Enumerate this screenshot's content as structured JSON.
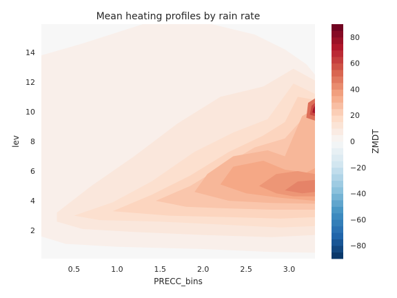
{
  "chart_data": {
    "type": "heatmap",
    "subtype": "filled-contour",
    "title": "Mean heating profiles by rain rate",
    "xlabel": "PRECC_bins",
    "ylabel": "lev",
    "colorbar_label": "ZMDT",
    "colormap": "RdBu_r",
    "xlim": [
      0.12,
      3.3
    ],
    "ylim": [
      0.1,
      15.9
    ],
    "color_range": [
      -90,
      90
    ],
    "x_ticks": [
      "0.5",
      "1.0",
      "1.5",
      "2.0",
      "2.5",
      "3.0"
    ],
    "y_ticks": [
      "2",
      "4",
      "6",
      "8",
      "10",
      "12",
      "14"
    ],
    "colorbar_ticks": [
      "80",
      "60",
      "40",
      "20",
      "0",
      "−20",
      "−40",
      "−60",
      "−80"
    ],
    "grid": false,
    "levels": [
      {
        "value": 0,
        "polygon": [
          [
            0.12,
            15.9
          ],
          [
            3.3,
            15.9
          ],
          [
            3.3,
            0.1
          ],
          [
            0.12,
            0.1
          ]
        ]
      },
      {
        "value": 5,
        "polygon": [
          [
            0.12,
            13.8
          ],
          [
            0.6,
            14.6
          ],
          [
            1.3,
            15.9
          ],
          [
            2.1,
            15.9
          ],
          [
            2.6,
            15.2
          ],
          [
            2.95,
            14.2
          ],
          [
            3.2,
            13.2
          ],
          [
            3.3,
            12.5
          ],
          [
            3.3,
            0.5
          ],
          [
            2.8,
            0.55
          ],
          [
            2.0,
            0.75
          ],
          [
            1.0,
            0.9
          ],
          [
            0.4,
            1.1
          ],
          [
            0.12,
            1.6
          ]
        ]
      },
      {
        "value": 10,
        "polygon": [
          [
            0.3,
            3.2
          ],
          [
            0.7,
            5.0
          ],
          [
            1.2,
            7.0
          ],
          [
            1.7,
            9.2
          ],
          [
            2.2,
            11.0
          ],
          [
            2.7,
            11.7
          ],
          [
            3.05,
            12.9
          ],
          [
            3.3,
            12.1
          ],
          [
            3.3,
            1.7
          ],
          [
            2.8,
            1.55
          ],
          [
            2.0,
            1.7
          ],
          [
            1.2,
            1.9
          ],
          [
            0.6,
            2.1
          ],
          [
            0.3,
            2.6
          ]
        ]
      },
      {
        "value": 15,
        "polygon": [
          [
            0.5,
            3.0
          ],
          [
            0.95,
            3.9
          ],
          [
            1.4,
            5.3
          ],
          [
            1.9,
            7.3
          ],
          [
            2.35,
            8.6
          ],
          [
            2.75,
            9.5
          ],
          [
            3.05,
            11.9
          ],
          [
            3.3,
            11.2
          ],
          [
            3.3,
            2.3
          ],
          [
            2.9,
            2.2
          ],
          [
            2.2,
            2.4
          ],
          [
            1.5,
            2.6
          ],
          [
            0.8,
            2.7
          ]
        ]
      },
      {
        "value": 20,
        "polygon": [
          [
            0.95,
            3.3
          ],
          [
            1.4,
            4.4
          ],
          [
            1.85,
            5.7
          ],
          [
            2.3,
            7.3
          ],
          [
            2.7,
            8.4
          ],
          [
            2.95,
            9.3
          ],
          [
            3.1,
            11.0
          ],
          [
            3.3,
            10.8
          ],
          [
            3.3,
            2.9
          ],
          [
            2.9,
            2.8
          ],
          [
            2.3,
            2.9
          ],
          [
            1.6,
            3.0
          ]
        ]
      },
      {
        "value": 25,
        "polygon": [
          [
            1.45,
            4.0
          ],
          [
            1.85,
            5.0
          ],
          [
            2.25,
            6.4
          ],
          [
            2.6,
            7.6
          ],
          [
            2.95,
            8.2
          ],
          [
            3.2,
            9.8
          ],
          [
            3.3,
            10.4
          ],
          [
            3.3,
            3.4
          ],
          [
            2.8,
            3.4
          ],
          [
            2.2,
            3.5
          ],
          [
            1.8,
            3.6
          ]
        ]
      },
      {
        "value": 30,
        "polygon": [
          [
            1.9,
            4.6
          ],
          [
            2.05,
            5.8
          ],
          [
            2.35,
            7.0
          ],
          [
            2.75,
            7.4
          ],
          [
            2.95,
            7.0
          ],
          [
            3.15,
            9.7
          ],
          [
            3.3,
            10.2
          ],
          [
            3.3,
            3.8
          ],
          [
            2.8,
            3.85
          ],
          [
            2.3,
            4.0
          ]
        ]
      },
      {
        "value": 35,
        "polygon": [
          [
            2.2,
            5.1
          ],
          [
            2.35,
            6.3
          ],
          [
            2.7,
            6.7
          ],
          [
            2.95,
            6.1
          ],
          [
            3.2,
            5.9
          ],
          [
            3.3,
            6.2
          ],
          [
            3.3,
            4.0
          ],
          [
            2.9,
            4.2
          ],
          [
            2.5,
            4.5
          ]
        ]
      },
      {
        "value": 40,
        "polygon": [
          [
            2.65,
            5.0
          ],
          [
            2.85,
            4.5
          ],
          [
            3.05,
            4.3
          ],
          [
            3.3,
            4.3
          ],
          [
            3.3,
            5.8
          ],
          [
            3.1,
            6.0
          ],
          [
            2.85,
            5.8
          ]
        ]
      },
      {
        "value": 45,
        "polygon": [
          [
            2.95,
            4.7
          ],
          [
            3.15,
            4.5
          ],
          [
            3.3,
            4.6
          ],
          [
            3.3,
            5.4
          ],
          [
            3.1,
            5.3
          ]
        ]
      },
      {
        "value": 50,
        "polygon": [
          [
            3.2,
            9.6
          ],
          [
            3.3,
            9.4
          ],
          [
            3.3,
            10.9
          ],
          [
            3.22,
            10.6
          ]
        ]
      },
      {
        "value": 60,
        "polygon": [
          [
            3.24,
            9.8
          ],
          [
            3.3,
            9.7
          ],
          [
            3.3,
            10.6
          ],
          [
            3.26,
            10.4
          ]
        ]
      },
      {
        "value": 75,
        "polygon": [
          [
            3.27,
            9.95
          ],
          [
            3.3,
            9.9
          ],
          [
            3.3,
            10.4
          ],
          [
            3.28,
            10.2
          ]
        ]
      }
    ]
  }
}
